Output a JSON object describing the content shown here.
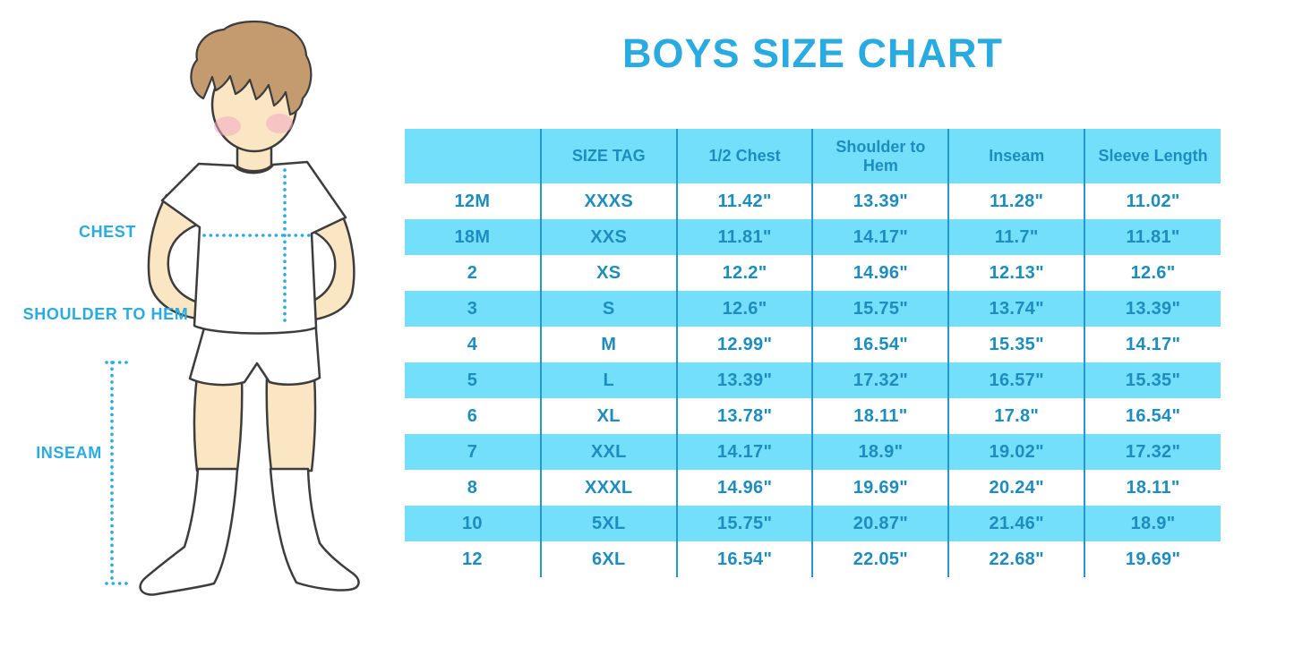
{
  "title": "BOYS SIZE CHART",
  "diagram": {
    "labels": {
      "chest": "CHEST",
      "shoulder_to_hem": "SHOULDER TO HEM",
      "inseam": "INSEAM"
    }
  },
  "colors": {
    "accent_blue": "#29ABE2",
    "table_row_blue": "#74DFFB",
    "table_text_blue": "#1D8CBE",
    "table_divider_blue": "#2399C8",
    "skin": "#FAE6C2",
    "hair_brown": "#C39B6E",
    "cheek_pink": "#F2A9C4",
    "outline": "#3D3D3D"
  },
  "chart_data": {
    "type": "table",
    "title": "BOYS SIZE CHART",
    "columns": [
      "",
      "SIZE TAG",
      "1/2 Chest",
      "Shoulder to Hem",
      "Inseam",
      "Sleeve Length"
    ],
    "rows": [
      [
        "12M",
        "XXXS",
        "11.42\"",
        "13.39\"",
        "11.28\"",
        "11.02\""
      ],
      [
        "18M",
        "XXS",
        "11.81\"",
        "14.17\"",
        "11.7\"",
        "11.81\""
      ],
      [
        "2",
        "XS",
        "12.2\"",
        "14.96\"",
        "12.13\"",
        "12.6\""
      ],
      [
        "3",
        "S",
        "12.6\"",
        "15.75\"",
        "13.74\"",
        "13.39\""
      ],
      [
        "4",
        "M",
        "12.99\"",
        "16.54\"",
        "15.35\"",
        "14.17\""
      ],
      [
        "5",
        "L",
        "13.39\"",
        "17.32\"",
        "16.57\"",
        "15.35\""
      ],
      [
        "6",
        "XL",
        "13.78\"",
        "18.11\"",
        "17.8\"",
        "16.54\""
      ],
      [
        "7",
        "XXL",
        "14.17\"",
        "18.9\"",
        "19.02\"",
        "17.32\""
      ],
      [
        "8",
        "XXXL",
        "14.96\"",
        "19.69\"",
        "20.24\"",
        "18.11\""
      ],
      [
        "10",
        "5XL",
        "15.75\"",
        "20.87\"",
        "21.46\"",
        "18.9\""
      ],
      [
        "12",
        "6XL",
        "16.54\"",
        "22.05\"",
        "22.68\"",
        "19.69\""
      ]
    ]
  }
}
